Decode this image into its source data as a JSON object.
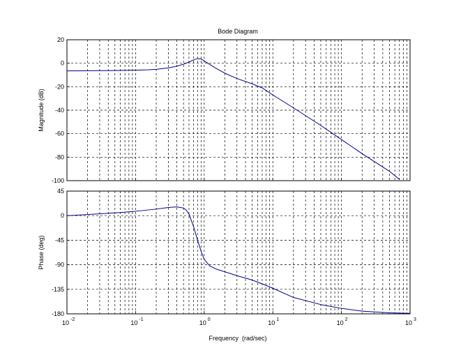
{
  "chart_data": {
    "type": "line",
    "title": "Bode Diagram",
    "xlabel": "Frequency  (rad/sec)",
    "x_scale": "log",
    "xlim": [
      0.01,
      1000
    ],
    "x_ticks": [
      {
        "base": "10",
        "exp": "-2",
        "value": 0.01
      },
      {
        "base": "10",
        "exp": "-1",
        "value": 0.1
      },
      {
        "base": "10",
        "exp": "0",
        "value": 1
      },
      {
        "base": "10",
        "exp": "1",
        "value": 10
      },
      {
        "base": "10",
        "exp": "2",
        "value": 100
      },
      {
        "base": "10",
        "exp": "3",
        "value": 1000
      }
    ],
    "grid": true,
    "grid_style": "dashed",
    "line_color": "#00008b",
    "panels": [
      {
        "id": "magnitude",
        "ylabel": "Magnitude (dB)",
        "ylim": [
          -100,
          20
        ],
        "y_ticks": [
          "20",
          "0",
          "-20",
          "-40",
          "-60",
          "-80",
          "-100"
        ],
        "y_tick_values": [
          20,
          0,
          -20,
          -40,
          -60,
          -80,
          -100
        ],
        "series": [
          {
            "x": [
              0.01,
              0.02,
              0.05,
              0.1,
              0.15,
              0.2,
              0.3,
              0.4,
              0.5,
              0.6,
              0.7,
              0.8,
              0.9,
              1.0,
              1.2,
              1.5,
              2,
              3,
              5,
              7,
              10,
              20,
              50,
              100,
              200,
              500,
              700
            ],
            "y": [
              -6.5,
              -6.4,
              -6.2,
              -5.9,
              -5.6,
              -5.2,
              -4.0,
              -2.5,
              -0.8,
              1.0,
              2.8,
              4.0,
              3.6,
              2.0,
              -1.0,
              -4.5,
              -8.5,
              -13.0,
              -17.5,
              -21.0,
              -27.0,
              -38.0,
              -53.0,
              -65.0,
              -77.0,
              -92.0,
              -99.0
            ]
          }
        ]
      },
      {
        "id": "phase",
        "ylabel": "Phase (deg)",
        "ylim": [
          -180,
          45
        ],
        "y_ticks": [
          "45",
          "0",
          "-45",
          "-90",
          "-135",
          "-180"
        ],
        "y_tick_values": [
          45,
          0,
          -45,
          -90,
          -135,
          -180
        ],
        "series": [
          {
            "x": [
              0.01,
              0.02,
              0.05,
              0.1,
              0.2,
              0.3,
              0.4,
              0.5,
              0.55,
              0.6,
              0.7,
              0.8,
              0.9,
              1.0,
              1.2,
              1.5,
              2,
              3,
              5,
              7,
              10,
              20,
              50,
              100,
              200,
              500,
              1000
            ],
            "y": [
              0,
              2,
              5,
              8,
              12,
              15,
              16,
              14,
              10,
              3,
              -20,
              -45,
              -65,
              -80,
              -92,
              -98,
              -103,
              -110,
              -118,
              -125,
              -133,
              -150,
              -163,
              -170,
              -175,
              -178,
              -179
            ]
          }
        ]
      }
    ]
  }
}
